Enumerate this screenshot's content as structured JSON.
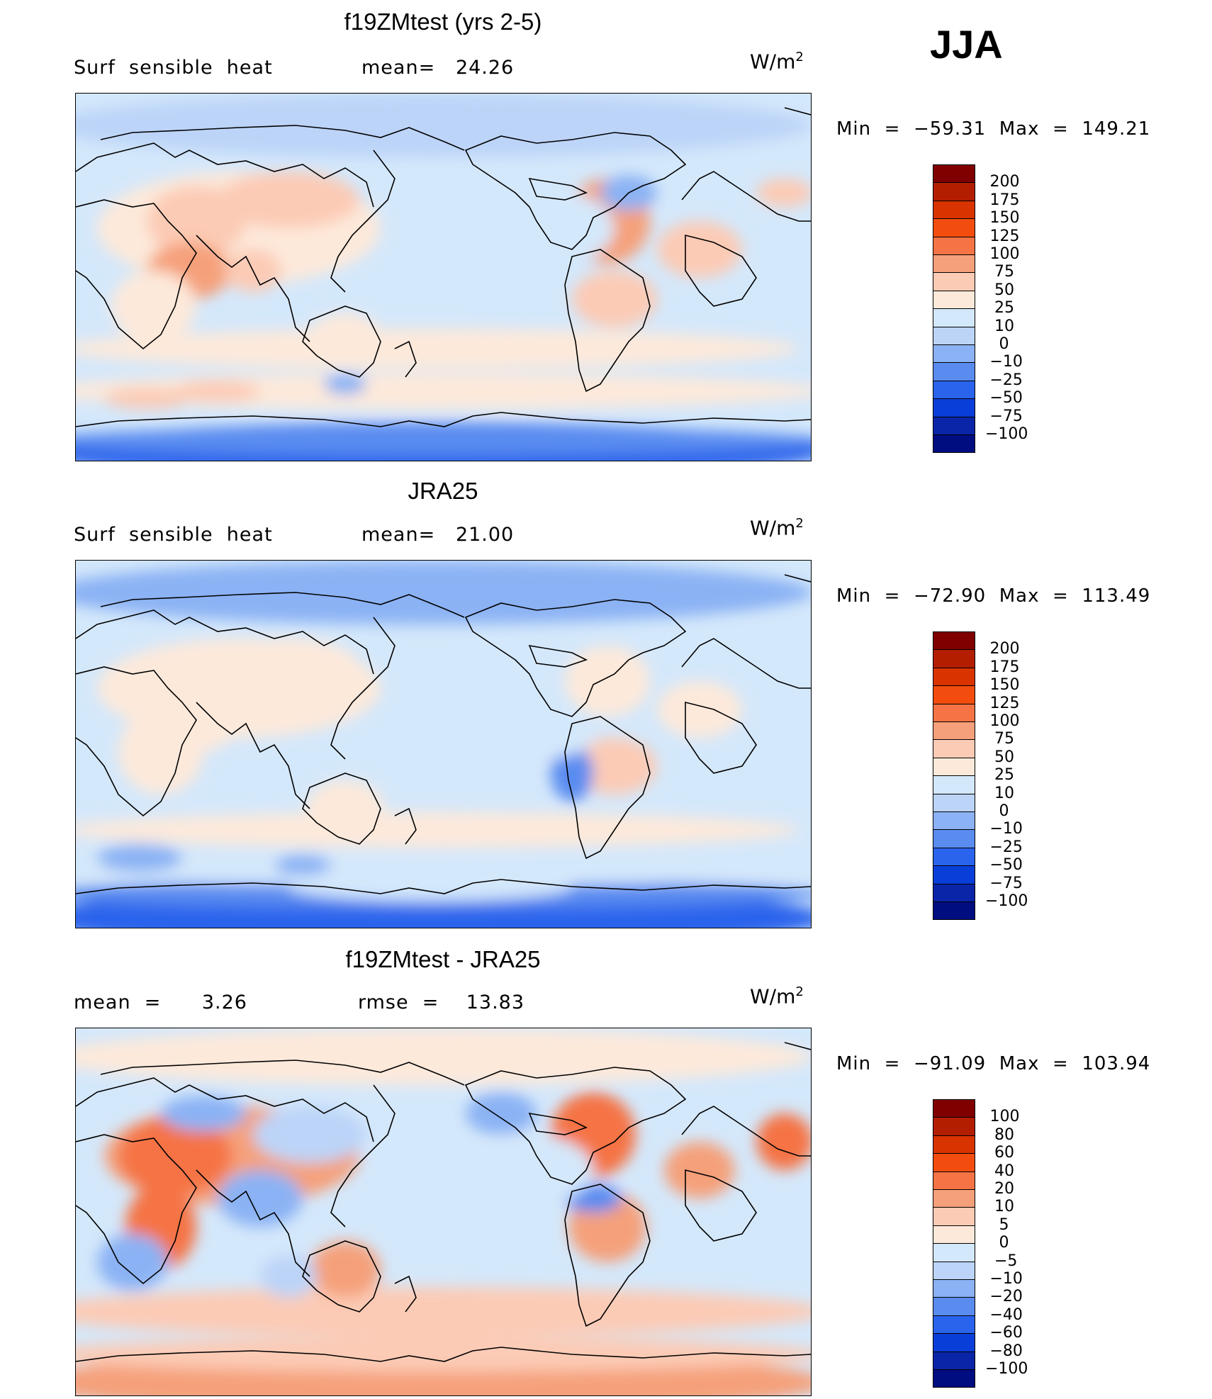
{
  "season": "JJA",
  "units_base": "W/m",
  "units_exp": "2",
  "panels": [
    {
      "title": "f19ZMtest (yrs 2-5)",
      "left_label": "Surf  sensible  heat",
      "right_label": "mean=   24.26",
      "minmax": "Min  =  −59.31  Max  =  149.21",
      "levels": [
        "200",
        "175",
        "150",
        "125",
        "100",
        "75",
        "50",
        "25",
        "10",
        "0",
        "−10",
        "−25",
        "−50",
        "−75",
        "−100"
      ],
      "colors": [
        "#800000",
        "#b31e00",
        "#d93300",
        "#f24d0f",
        "#f57345",
        "#f5a07a",
        "#fccbb5",
        "#fde9da",
        "#d4e8fb",
        "#bcd4f8",
        "#8bb2f4",
        "#5a8cf0",
        "#2a63ec",
        "#0a3ed8",
        "#0a25a8",
        "#000d80"
      ]
    },
    {
      "title": "JRA25",
      "left_label": "Surf  sensible  heat",
      "right_label": "mean=   21.00",
      "minmax": "Min  =  −72.90  Max  =  113.49",
      "levels": [
        "200",
        "175",
        "150",
        "125",
        "100",
        "75",
        "50",
        "25",
        "10",
        "0",
        "−10",
        "−25",
        "−50",
        "−75",
        "−100"
      ],
      "colors": [
        "#800000",
        "#b31e00",
        "#d93300",
        "#f24d0f",
        "#f57345",
        "#f5a07a",
        "#fccbb5",
        "#fde9da",
        "#d4e8fb",
        "#bcd4f8",
        "#8bb2f4",
        "#5a8cf0",
        "#2a63ec",
        "#0a3ed8",
        "#0a25a8",
        "#000d80"
      ]
    },
    {
      "title": "f19ZMtest - JRA25",
      "left_label": "mean  =      3.26",
      "right_label": "rmse  =    13.83",
      "minmax": "Min  =  −91.09  Max  =  103.94",
      "levels": [
        "100",
        "80",
        "60",
        "40",
        "20",
        "10",
        "5",
        "0",
        "−5",
        "−10",
        "−20",
        "−40",
        "−60",
        "−80",
        "−100"
      ],
      "colors": [
        "#800000",
        "#b31e00",
        "#d93300",
        "#f24d0f",
        "#f57345",
        "#f5a07a",
        "#fccbb5",
        "#fde9da",
        "#d4e8fb",
        "#bcd4f8",
        "#8bb2f4",
        "#5a8cf0",
        "#2a63ec",
        "#0a3ed8",
        "#0a25a8",
        "#000d80"
      ]
    }
  ]
}
